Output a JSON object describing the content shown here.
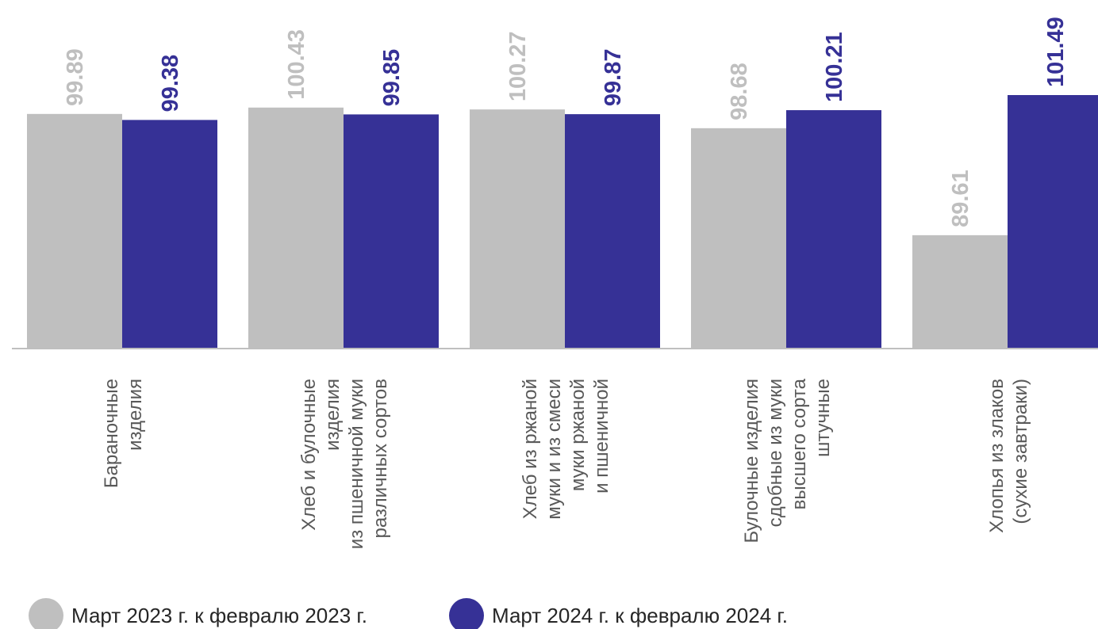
{
  "chart_data": {
    "type": "bar",
    "title": "",
    "xlabel": "",
    "ylabel": "",
    "categories": [
      [
        "Бараночные",
        "изделия"
      ],
      [
        "Хлеб и булочные",
        "изделия",
        "из пшеничной муки",
        "различных сортов"
      ],
      [
        "Хлеб из ржаной",
        "муки и из смеси",
        "муки ржаной",
        "и пшеничной"
      ],
      [
        "Булочные изделия",
        "сдобные из муки",
        "высшего сорта",
        "штучные"
      ],
      [
        "Хлопья из злаков",
        "(сухие завтраки)"
      ]
    ],
    "series": [
      {
        "name": "Март 2023 г. к февралю 2023 г.",
        "values": [
          99.89,
          100.43,
          100.27,
          98.68,
          89.61
        ],
        "color": "#bfbfbf"
      },
      {
        "name": "Март 2024 г. к февралю 2024 г.",
        "values": [
          99.38,
          99.85,
          99.87,
          100.21,
          101.49
        ],
        "color": "#363196"
      }
    ],
    "ylim": [
      80,
      101.49
    ],
    "grid": false,
    "legend_position": "bottom-left"
  }
}
